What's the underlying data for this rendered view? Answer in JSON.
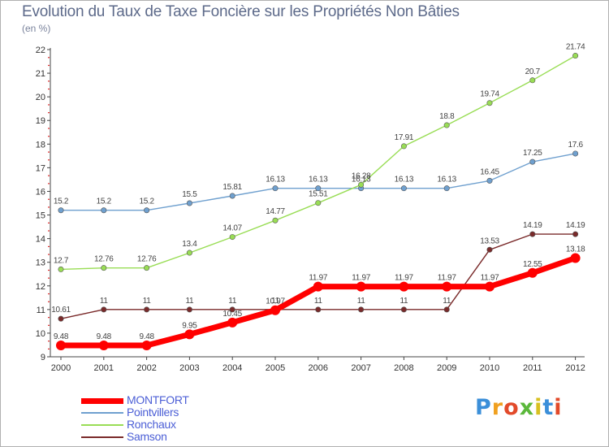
{
  "title": "Evolution du Taux de Taxe Foncière sur les Propriétés Non Bâties",
  "unit": "(en %)",
  "brand": "Proxiti",
  "chart_data": {
    "type": "line",
    "title": "Evolution du Taux de Taxe Foncière sur les Propriétés Non Bâties",
    "ylabel": "(en %)",
    "xlabel": "",
    "x": [
      "2000",
      "2001",
      "2002",
      "2003",
      "2004",
      "2005",
      "2006",
      "2007",
      "2008",
      "2009",
      "2010",
      "2011",
      "2012"
    ],
    "ylim": [
      9,
      22
    ],
    "yticks": [
      9,
      10,
      11,
      12,
      13,
      14,
      15,
      16,
      17,
      18,
      19,
      20,
      21,
      22
    ],
    "grid": false,
    "legend": "bottom-left",
    "series": [
      {
        "name": "MONTFORT",
        "color": "#ff0000",
        "values": [
          9.48,
          9.48,
          9.48,
          9.95,
          10.45,
          10.97,
          11.97,
          11.97,
          11.97,
          11.97,
          11.97,
          12.55,
          13.18
        ],
        "labels": [
          "9.48",
          "9.48",
          "9.48",
          "9.95",
          "10.45",
          "10.97",
          "11.97",
          "11.97",
          "11.97",
          "11.97",
          "11.97",
          "12.55",
          "13.18"
        ]
      },
      {
        "name": "Pointvillers",
        "color": "#6fa0cf",
        "values": [
          15.2,
          15.2,
          15.2,
          15.5,
          15.81,
          16.13,
          16.13,
          16.13,
          16.13,
          16.13,
          16.45,
          17.25,
          17.6
        ],
        "labels": [
          "15.2",
          "15.2",
          "15.2",
          "15.5",
          "15.81",
          "16.13",
          "16.13",
          "16.13",
          "16.13",
          "16.13",
          "16.45",
          "17.25",
          "17.6"
        ]
      },
      {
        "name": "Ronchaux",
        "color": "#99dd55",
        "values": [
          12.7,
          12.76,
          12.76,
          13.4,
          14.07,
          14.77,
          15.51,
          16.28,
          17.91,
          18.8,
          19.74,
          20.7,
          21.74
        ],
        "labels": [
          "12.7",
          "12.76",
          "12.76",
          "13.4",
          "14.07",
          "14.77",
          "15.51",
          "16.28",
          "17.91",
          "18.8",
          "19.74",
          "20.7",
          "21.74"
        ]
      },
      {
        "name": "Samson",
        "color": "#7a2a2a",
        "values": [
          10.61,
          11,
          11,
          11,
          11,
          11,
          11,
          11,
          11,
          11,
          13.53,
          14.19,
          14.19
        ],
        "labels": [
          "10.61",
          "11",
          "11",
          "11",
          "11",
          "11",
          "11",
          "11",
          "11",
          "11",
          "13.53",
          "14.19",
          "14.19"
        ]
      }
    ]
  }
}
